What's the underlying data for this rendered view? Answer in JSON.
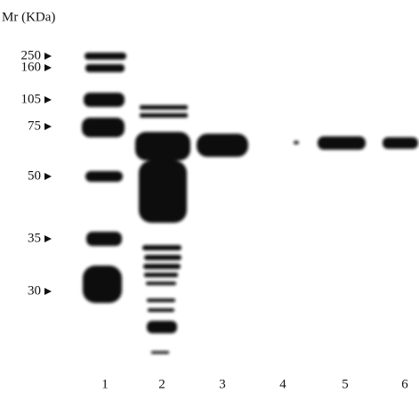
{
  "header": {
    "title": "Mr (KDa)"
  },
  "markers": [
    "250",
    "160",
    "105",
    "75",
    "50",
    "35",
    "30"
  ],
  "lanes": [
    "1",
    "2",
    "3",
    "4",
    "5",
    "6"
  ]
}
